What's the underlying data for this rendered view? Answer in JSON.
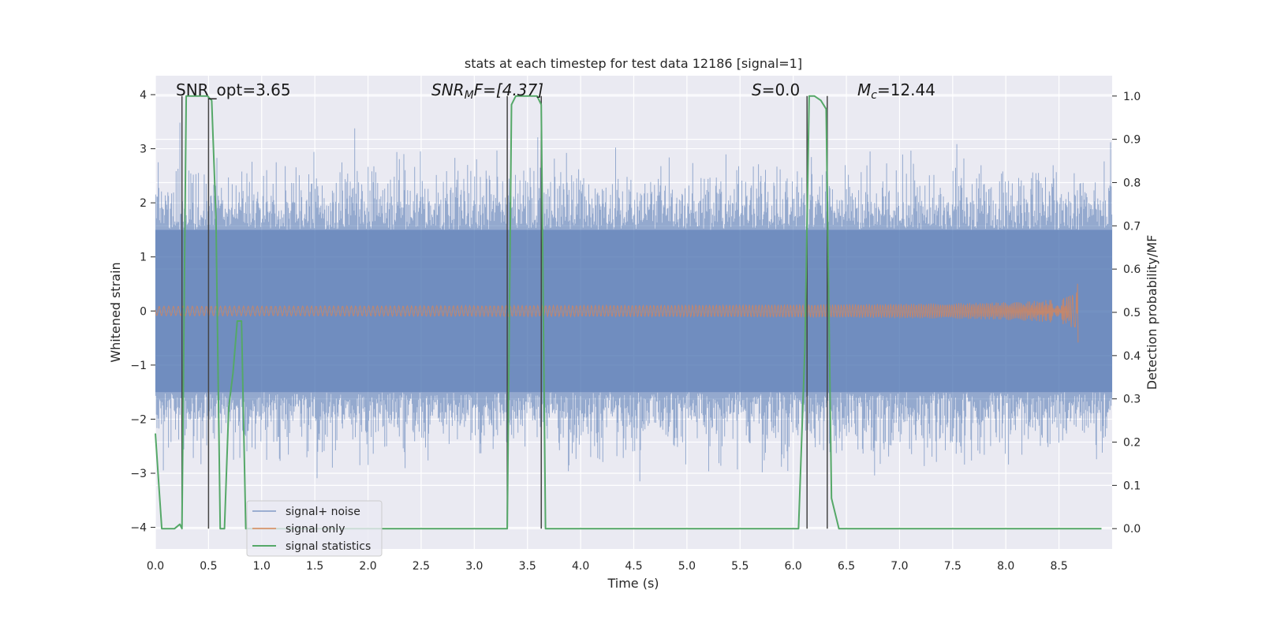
{
  "chart_data": {
    "type": "line",
    "title": "stats at each timestep for test data 12186 [signal=1]",
    "xlabel": "Time (s)",
    "ylabel_left": "Whitened strain",
    "ylabel_right": "Detection probability/MF",
    "xlim": [
      0.0,
      9.0
    ],
    "ylim_left": [
      -4.4,
      4.35
    ],
    "ylim_right": [
      -0.047,
      1.047
    ],
    "x_ticks": [
      "0.0",
      "0.5",
      "1.0",
      "1.5",
      "2.0",
      "2.5",
      "3.0",
      "3.5",
      "4.0",
      "4.5",
      "5.0",
      "5.5",
      "6.0",
      "6.5",
      "7.0",
      "7.5",
      "8.0",
      "8.5"
    ],
    "x_tick_values": [
      0,
      0.5,
      1,
      1.5,
      2,
      2.5,
      3,
      3.5,
      4,
      4.5,
      5,
      5.5,
      6,
      6.5,
      7,
      7.5,
      8,
      8.5
    ],
    "y_left_ticks": [
      "4",
      "3",
      "2",
      "1",
      "0",
      "−1",
      "−2",
      "−3",
      "−4"
    ],
    "y_left_tick_values": [
      4,
      3,
      2,
      1,
      0,
      -1,
      -2,
      -3,
      -4
    ],
    "y_right_ticks": [
      "1.0",
      "0.9",
      "0.8",
      "0.7",
      "0.6",
      "0.5",
      "0.4",
      "0.3",
      "0.2",
      "0.1",
      "0.0"
    ],
    "y_right_tick_values": [
      1.0,
      0.9,
      0.8,
      0.7,
      0.6,
      0.5,
      0.4,
      0.3,
      0.2,
      0.1,
      0.0
    ],
    "grid": true,
    "legend_position": "lower-left",
    "series": [
      {
        "name": "signal+ noise",
        "color": "#4c72b0",
        "axis": "left",
        "style": "noise band",
        "band_core": 1.5,
        "band_peak": 3.7,
        "seed": 12186
      },
      {
        "name": "signal only",
        "color": "#dd8452",
        "axis": "left",
        "style": "chirp",
        "t_merge": 8.68,
        "peak_amplitude": 0.6
      },
      {
        "name": "signal statistics",
        "color": "#55a868",
        "axis": "right",
        "x": [
          0.0,
          0.06,
          0.18,
          0.23,
          0.25,
          0.29,
          0.33,
          0.37,
          0.41,
          0.45,
          0.49,
          0.53,
          0.57,
          0.61,
          0.65,
          0.69,
          0.73,
          0.77,
          0.81,
          0.85,
          0.89,
          0.93,
          0.97,
          3.27,
          3.31,
          3.35,
          3.39,
          3.59,
          3.63,
          3.67,
          3.7,
          6.05,
          6.11,
          6.15,
          6.2,
          6.26,
          6.31,
          6.36,
          6.43,
          8.9
        ],
        "y": [
          0.22,
          0.0,
          0.0,
          0.01,
          0.0,
          1.0,
          1.0,
          1.0,
          1.0,
          1.0,
          1.0,
          0.99,
          0.72,
          0.0,
          0.0,
          0.28,
          0.36,
          0.48,
          0.48,
          0.0,
          0.0,
          0.0,
          0.0,
          0.0,
          0.0,
          0.98,
          1.0,
          1.0,
          0.98,
          0.0,
          0.0,
          0.0,
          0.42,
          1.0,
          1.0,
          0.99,
          0.97,
          0.07,
          0.0,
          0.0
        ]
      }
    ],
    "vlines": [
      0.25,
      0.5,
      3.31,
      3.63,
      6.13,
      6.32
    ],
    "annotations": {
      "snr_opt": "SNR_opt=3.65",
      "snr_mf_prefix": "SNR",
      "snr_mf_sub": "M",
      "snr_mf_suffix": "F=[4.37]",
      "s_italic": "S",
      "s_value": "=0.0",
      "mc_italic": "M",
      "mc_sub": "c",
      "mc_value": "=12.44"
    },
    "legend": [
      "signal+ noise",
      "signal only",
      "signal statistics"
    ]
  },
  "colors": {
    "background": "#eaeaf2",
    "grid": "#ffffff",
    "noise": "#4c72b0",
    "signal": "#dd8452",
    "stats": "#55a868",
    "vline": "#444444"
  }
}
